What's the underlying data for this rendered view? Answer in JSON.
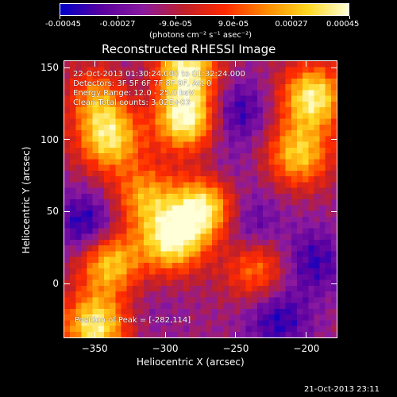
{
  "colorbar": {
    "labels": [
      "-0.00045",
      "-0.00027",
      "-9.0e-05",
      "9.0e-05",
      "0.00027",
      "0.00045"
    ],
    "units_text": "(photons cm⁻² s⁻¹ asec⁻²)",
    "colors": [
      "#0000c8",
      "#5a00a0",
      "#8a1aa0",
      "#c0202a",
      "#ff2a00",
      "#ff8a00",
      "#ffd820",
      "#ffffd8"
    ]
  },
  "chart_data": {
    "type": "heatmap",
    "title": "Reconstructed RHESSI Image",
    "xlabel": "Heliocentric X (arcsec)",
    "ylabel": "Heliocentric Y (arcsec)",
    "xlim": [
      -372,
      -178
    ],
    "ylim": [
      -38,
      155
    ],
    "x_ticks": [
      -350,
      -300,
      -250,
      -200
    ],
    "y_ticks": [
      0,
      50,
      100,
      150
    ],
    "value_range": [
      -0.00045,
      0.00045
    ],
    "peak_position": [
      -282,
      114
    ],
    "bright_regions": [
      {
        "x": -285,
        "y": 115,
        "value": 0.00045
      },
      {
        "x": -285,
        "y": 150,
        "value": 0.0004
      },
      {
        "x": -272,
        "y": 53,
        "value": 0.00042
      },
      {
        "x": -295,
        "y": 30,
        "value": 0.0004
      },
      {
        "x": -340,
        "y": 100,
        "value": 0.00033
      },
      {
        "x": -345,
        "y": 130,
        "value": 0.00027
      },
      {
        "x": -350,
        "y": -30,
        "value": 0.0004
      },
      {
        "x": -340,
        "y": 15,
        "value": 0.00033
      },
      {
        "x": -195,
        "y": 130,
        "value": 0.0004
      },
      {
        "x": -205,
        "y": 90,
        "value": 0.0003
      },
      {
        "x": -315,
        "y": 60,
        "value": 0.00022
      },
      {
        "x": -235,
        "y": 10,
        "value": 0.00018
      }
    ],
    "dark_regions": [
      {
        "x": -355,
        "y": 40,
        "value": -0.00045
      },
      {
        "x": -250,
        "y": 120,
        "value": -0.0004
      },
      {
        "x": -330,
        "y": 135,
        "value": -0.0003
      },
      {
        "x": -240,
        "y": 40,
        "value": -0.00035
      },
      {
        "x": -220,
        "y": -25,
        "value": -0.0004
      },
      {
        "x": -195,
        "y": 15,
        "value": -0.00038
      },
      {
        "x": -260,
        "y": 75,
        "value": -0.00025
      },
      {
        "x": -310,
        "y": -20,
        "value": -0.0002
      }
    ]
  },
  "annotations": {
    "time_range": "22-Oct-2013 01:30:24.000 to 01:32:24.000",
    "detectors": "Detectors: 3F 5F 6F 7F 8F 9F, Att 0",
    "energy": "Energy Range: 12.0 - 25.0 keV",
    "clean": "Clean    Total counts: 3.02E+03",
    "peak": "Position of Peak = [-282,114]"
  },
  "footer": {
    "timestamp": "21-Oct-2013 23:11"
  }
}
